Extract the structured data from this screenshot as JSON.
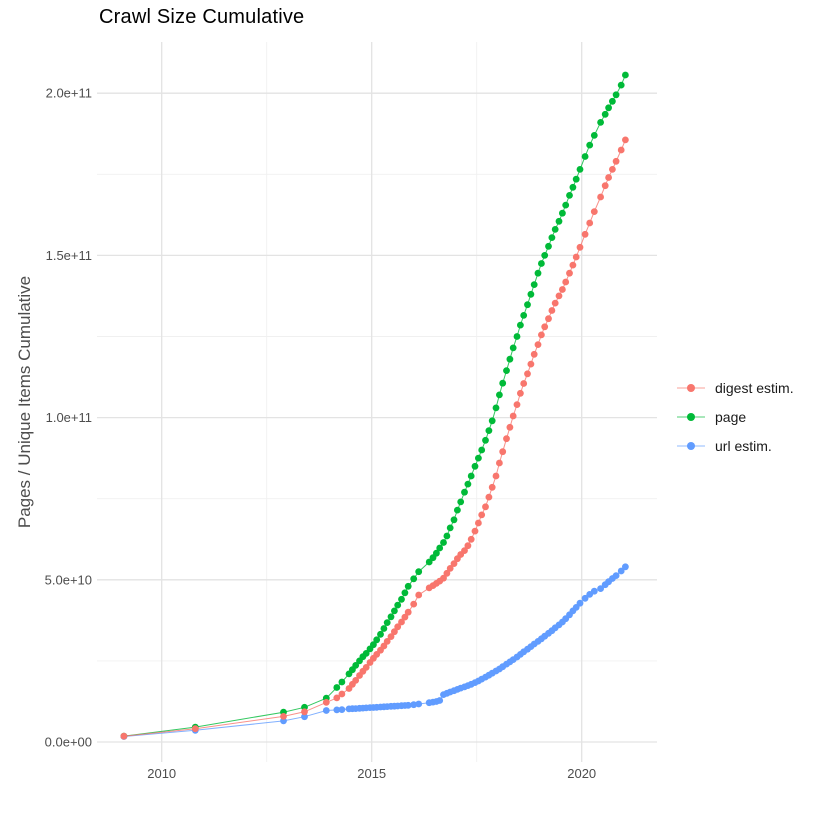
{
  "chart": {
    "title": "Crawl Size Cumulative",
    "y_axis_label": "Pages / Unique Items Cumulative"
  },
  "chart_data": {
    "type": "scatter",
    "title": "Crawl Size Cumulative",
    "xlabel": "",
    "ylabel": "Pages / Unique Items Cumulative",
    "grid": true,
    "legend_position": "right",
    "xlim": [
      2008.7,
      2021.8
    ],
    "ylim_e9": [
      -8,
      216
    ],
    "x_ticks": [
      2010,
      2015,
      2020
    ],
    "x_tick_labels": [
      "2010",
      "2015",
      "2020"
    ],
    "x_minor_ticks": [
      2012.5,
      2017.5
    ],
    "y_ticks_e9": [
      0,
      50,
      100,
      150,
      200
    ],
    "y_tick_labels": [
      "0.0e+00",
      "5.0e+10",
      "1.0e+11",
      "1.5e+11",
      "2.0e+11"
    ],
    "y_minor_ticks_e9": [
      25,
      75,
      125,
      175
    ],
    "units_note": "values_e9 = cumulative count in billions (1e9)",
    "series": [
      {
        "name": "digest estim.",
        "color": "#F8766D",
        "points_year_value_e9": [
          [
            2009.1,
            1.8
          ],
          [
            2010.8,
            4.1
          ],
          [
            2012.9,
            7.9
          ],
          [
            2013.4,
            9.3
          ],
          [
            2013.92,
            12.2
          ],
          [
            2014.17,
            13.6
          ],
          [
            2014.29,
            14.8
          ],
          [
            2014.46,
            16.5
          ],
          [
            2014.54,
            17.8
          ],
          [
            2014.62,
            19.0
          ],
          [
            2014.71,
            20.5
          ],
          [
            2014.79,
            21.8
          ],
          [
            2014.87,
            23.0
          ],
          [
            2014.96,
            24.5
          ],
          [
            2015.04,
            25.8
          ],
          [
            2015.12,
            27.0
          ],
          [
            2015.21,
            28.3
          ],
          [
            2015.29,
            29.6
          ],
          [
            2015.37,
            31.0
          ],
          [
            2015.46,
            32.5
          ],
          [
            2015.54,
            34.0
          ],
          [
            2015.62,
            35.5
          ],
          [
            2015.71,
            37.0
          ],
          [
            2015.79,
            38.5
          ],
          [
            2015.87,
            40.0
          ],
          [
            2016.0,
            42.5
          ],
          [
            2016.12,
            45.3
          ],
          [
            2016.37,
            47.5
          ],
          [
            2016.46,
            48.2
          ],
          [
            2016.54,
            48.9
          ],
          [
            2016.62,
            49.6
          ],
          [
            2016.71,
            50.5
          ],
          [
            2016.79,
            52.0
          ],
          [
            2016.87,
            53.5
          ],
          [
            2016.96,
            55.0
          ],
          [
            2017.04,
            56.5
          ],
          [
            2017.12,
            57.8
          ],
          [
            2017.21,
            59.0
          ],
          [
            2017.29,
            60.5
          ],
          [
            2017.37,
            62.5
          ],
          [
            2017.46,
            65.0
          ],
          [
            2017.54,
            67.5
          ],
          [
            2017.62,
            70.0
          ],
          [
            2017.71,
            72.5
          ],
          [
            2017.79,
            75.5
          ],
          [
            2017.87,
            78.5
          ],
          [
            2017.96,
            82.0
          ],
          [
            2018.04,
            86.0
          ],
          [
            2018.12,
            89.5
          ],
          [
            2018.21,
            93.5
          ],
          [
            2018.29,
            97.0
          ],
          [
            2018.37,
            100.5
          ],
          [
            2018.46,
            104.0
          ],
          [
            2018.54,
            107.5
          ],
          [
            2018.62,
            110.5
          ],
          [
            2018.71,
            113.5
          ],
          [
            2018.79,
            116.5
          ],
          [
            2018.87,
            119.5
          ],
          [
            2018.96,
            122.5
          ],
          [
            2019.04,
            125.5
          ],
          [
            2019.12,
            128.0
          ],
          [
            2019.21,
            130.5
          ],
          [
            2019.29,
            133.0
          ],
          [
            2019.37,
            135.3
          ],
          [
            2019.46,
            137.5
          ],
          [
            2019.54,
            139.5
          ],
          [
            2019.62,
            141.8
          ],
          [
            2019.71,
            144.5
          ],
          [
            2019.79,
            147.0
          ],
          [
            2019.87,
            149.5
          ],
          [
            2019.96,
            152.5
          ],
          [
            2020.08,
            156.5
          ],
          [
            2020.19,
            160.0
          ],
          [
            2020.3,
            163.5
          ],
          [
            2020.45,
            168.0
          ],
          [
            2020.56,
            171.5
          ],
          [
            2020.64,
            174.0
          ],
          [
            2020.73,
            176.5
          ],
          [
            2020.82,
            179.0
          ],
          [
            2020.94,
            182.5
          ],
          [
            2021.04,
            185.6
          ]
        ]
      },
      {
        "name": "page",
        "color": "#00BA38",
        "points_year_value_e9": [
          [
            2009.1,
            1.8
          ],
          [
            2010.8,
            4.6
          ],
          [
            2012.9,
            9.2
          ],
          [
            2013.4,
            10.7
          ],
          [
            2013.92,
            13.5
          ],
          [
            2014.17,
            16.8
          ],
          [
            2014.29,
            18.5
          ],
          [
            2014.46,
            21.0
          ],
          [
            2014.54,
            22.3
          ],
          [
            2014.62,
            23.6
          ],
          [
            2014.71,
            25.0
          ],
          [
            2014.79,
            26.3
          ],
          [
            2014.87,
            27.3
          ],
          [
            2014.96,
            28.7
          ],
          [
            2015.04,
            30.0
          ],
          [
            2015.12,
            31.5
          ],
          [
            2015.21,
            33.2
          ],
          [
            2015.29,
            35.0
          ],
          [
            2015.37,
            36.8
          ],
          [
            2015.46,
            38.6
          ],
          [
            2015.54,
            40.4
          ],
          [
            2015.62,
            42.2
          ],
          [
            2015.71,
            44.0
          ],
          [
            2015.79,
            46.0
          ],
          [
            2015.87,
            48.0
          ],
          [
            2016.0,
            50.3
          ],
          [
            2016.12,
            52.5
          ],
          [
            2016.37,
            55.5
          ],
          [
            2016.46,
            56.8
          ],
          [
            2016.54,
            58.2
          ],
          [
            2016.62,
            59.8
          ],
          [
            2016.71,
            61.5
          ],
          [
            2016.79,
            63.5
          ],
          [
            2016.87,
            66.0
          ],
          [
            2016.96,
            68.5
          ],
          [
            2017.04,
            71.5
          ],
          [
            2017.12,
            74.0
          ],
          [
            2017.21,
            77.0
          ],
          [
            2017.29,
            79.5
          ],
          [
            2017.37,
            82.0
          ],
          [
            2017.46,
            85.0
          ],
          [
            2017.54,
            87.5
          ],
          [
            2017.62,
            90.0
          ],
          [
            2017.71,
            93.0
          ],
          [
            2017.79,
            96.0
          ],
          [
            2017.87,
            99.0
          ],
          [
            2017.96,
            103.0
          ],
          [
            2018.04,
            107.0
          ],
          [
            2018.12,
            110.6
          ],
          [
            2018.21,
            114.5
          ],
          [
            2018.29,
            118.0
          ],
          [
            2018.37,
            121.5
          ],
          [
            2018.46,
            125.0
          ],
          [
            2018.54,
            128.5
          ],
          [
            2018.62,
            131.5
          ],
          [
            2018.71,
            134.8
          ],
          [
            2018.79,
            138.0
          ],
          [
            2018.87,
            141.0
          ],
          [
            2018.96,
            144.5
          ],
          [
            2019.04,
            147.5
          ],
          [
            2019.12,
            150.0
          ],
          [
            2019.21,
            152.8
          ],
          [
            2019.29,
            155.5
          ],
          [
            2019.37,
            158.0
          ],
          [
            2019.46,
            160.5
          ],
          [
            2019.54,
            163.0
          ],
          [
            2019.62,
            165.5
          ],
          [
            2019.71,
            168.5
          ],
          [
            2019.79,
            171.0
          ],
          [
            2019.87,
            173.5
          ],
          [
            2019.96,
            176.5
          ],
          [
            2020.08,
            180.5
          ],
          [
            2020.19,
            184.0
          ],
          [
            2020.3,
            187.0
          ],
          [
            2020.45,
            191.0
          ],
          [
            2020.56,
            193.5
          ],
          [
            2020.64,
            195.5
          ],
          [
            2020.73,
            197.5
          ],
          [
            2020.82,
            199.5
          ],
          [
            2020.94,
            202.5
          ],
          [
            2021.04,
            205.6
          ]
        ]
      },
      {
        "name": "url estim.",
        "color": "#619CFF",
        "points_year_value_e9": [
          [
            2009.1,
            1.7
          ],
          [
            2010.8,
            3.6
          ],
          [
            2012.9,
            6.5
          ],
          [
            2013.4,
            7.8
          ],
          [
            2013.92,
            9.7
          ],
          [
            2014.17,
            9.9
          ],
          [
            2014.29,
            10.0
          ],
          [
            2014.46,
            10.2
          ],
          [
            2014.54,
            10.25
          ],
          [
            2014.62,
            10.3
          ],
          [
            2014.71,
            10.4
          ],
          [
            2014.79,
            10.45
          ],
          [
            2014.87,
            10.5
          ],
          [
            2014.96,
            10.6
          ],
          [
            2015.04,
            10.65
          ],
          [
            2015.12,
            10.7
          ],
          [
            2015.21,
            10.8
          ],
          [
            2015.29,
            10.85
          ],
          [
            2015.37,
            10.9
          ],
          [
            2015.46,
            11.0
          ],
          [
            2015.54,
            11.05
          ],
          [
            2015.62,
            11.1
          ],
          [
            2015.71,
            11.2
          ],
          [
            2015.79,
            11.25
          ],
          [
            2015.87,
            11.3
          ],
          [
            2016.0,
            11.5
          ],
          [
            2016.12,
            11.7
          ],
          [
            2016.37,
            12.1
          ],
          [
            2016.46,
            12.3
          ],
          [
            2016.54,
            12.5
          ],
          [
            2016.62,
            12.8
          ],
          [
            2016.71,
            14.6
          ],
          [
            2016.79,
            15.0
          ],
          [
            2016.87,
            15.4
          ],
          [
            2016.96,
            15.8
          ],
          [
            2017.04,
            16.2
          ],
          [
            2017.12,
            16.6
          ],
          [
            2017.21,
            17.0
          ],
          [
            2017.29,
            17.4
          ],
          [
            2017.37,
            17.8
          ],
          [
            2017.46,
            18.3
          ],
          [
            2017.54,
            18.8
          ],
          [
            2017.62,
            19.4
          ],
          [
            2017.71,
            20.0
          ],
          [
            2017.79,
            20.6
          ],
          [
            2017.87,
            21.2
          ],
          [
            2017.96,
            21.9
          ],
          [
            2018.04,
            22.5
          ],
          [
            2018.12,
            23.2
          ],
          [
            2018.21,
            24.0
          ],
          [
            2018.29,
            24.7
          ],
          [
            2018.37,
            25.4
          ],
          [
            2018.46,
            26.2
          ],
          [
            2018.54,
            27.0
          ],
          [
            2018.62,
            27.8
          ],
          [
            2018.71,
            28.6
          ],
          [
            2018.79,
            29.4
          ],
          [
            2018.87,
            30.2
          ],
          [
            2018.96,
            31.0
          ],
          [
            2019.04,
            31.8
          ],
          [
            2019.12,
            32.6
          ],
          [
            2019.21,
            33.5
          ],
          [
            2019.29,
            34.3
          ],
          [
            2019.37,
            35.2
          ],
          [
            2019.46,
            36.1
          ],
          [
            2019.54,
            37.0
          ],
          [
            2019.62,
            38.0
          ],
          [
            2019.71,
            39.2
          ],
          [
            2019.79,
            40.4
          ],
          [
            2019.87,
            41.5
          ],
          [
            2019.96,
            42.8
          ],
          [
            2020.08,
            44.3
          ],
          [
            2020.19,
            45.5
          ],
          [
            2020.3,
            46.5
          ],
          [
            2020.45,
            47.3
          ],
          [
            2020.56,
            48.5
          ],
          [
            2020.64,
            49.4
          ],
          [
            2020.73,
            50.4
          ],
          [
            2020.82,
            51.3
          ],
          [
            2020.94,
            52.7
          ],
          [
            2021.04,
            54.0
          ]
        ]
      }
    ],
    "style": {
      "grid_major_color": "#E3E3E3",
      "grid_minor_color": "#F0F0F0",
      "tick_label_color": "#4d4d4d",
      "title_color": "#000000",
      "background": "#ffffff"
    }
  }
}
